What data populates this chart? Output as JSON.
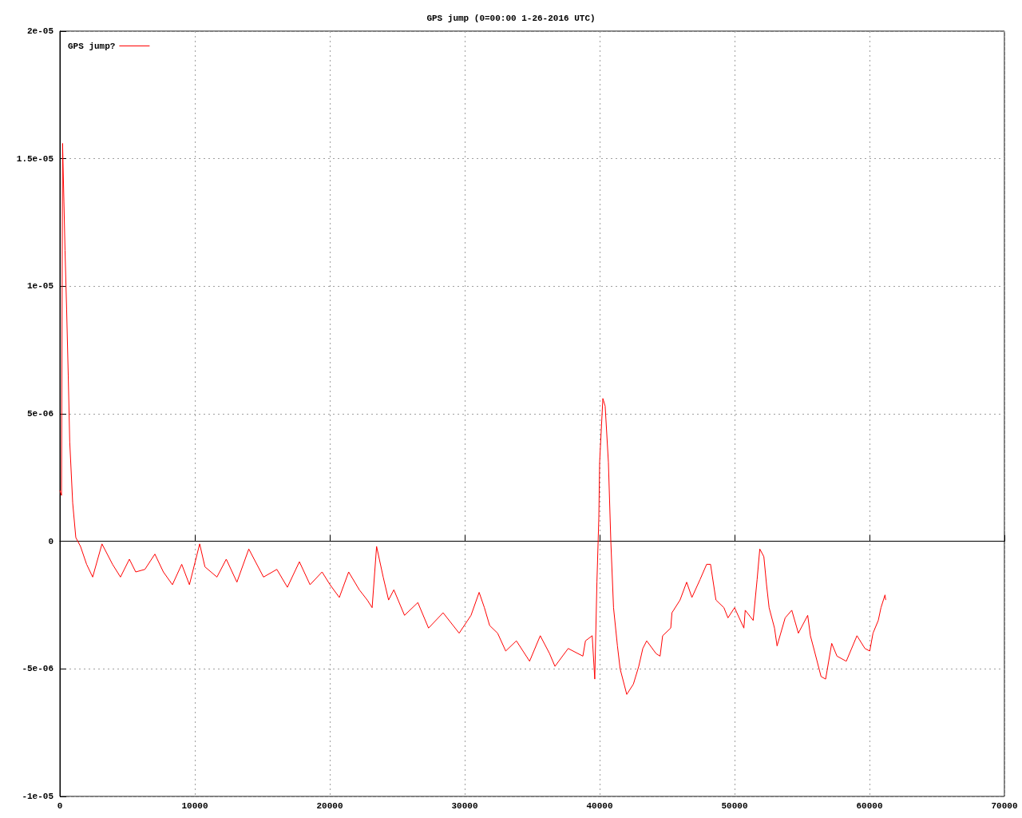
{
  "chart_data": {
    "type": "line",
    "title": "GPS jump (0=00:00 1-26-2016 UTC)",
    "xlim": [
      0,
      70000
    ],
    "xticks": [
      0,
      10000,
      20000,
      30000,
      40000,
      50000,
      60000,
      70000
    ],
    "ylim": [
      -1e-05,
      2e-05
    ],
    "yticks": [
      {
        "value": -1e-05,
        "label": "-1e-05"
      },
      {
        "value": -5e-06,
        "label": "-5e-06"
      },
      0,
      {
        "value": 5e-06,
        "label": "5e-06"
      },
      {
        "value": 1e-05,
        "label": "1e-05"
      },
      {
        "value": 1.5e-05,
        "label": "1.5e-05"
      },
      {
        "value": 2e-05,
        "label": "2e-05"
      }
    ],
    "grid": true,
    "legend": "top left",
    "marker": "none",
    "line_style": "solid",
    "series": [
      {
        "name": "GPS jump?",
        "color": "#ff0000",
        "x": [
          0,
          120,
          150,
          200,
          300,
          380,
          500,
          620,
          730,
          950,
          1180,
          1530,
          1980,
          2430,
          3120,
          3900,
          4490,
          5150,
          5620,
          6300,
          7040,
          7670,
          8340,
          9030,
          9600,
          10360,
          10750,
          11640,
          12330,
          13120,
          14000,
          15090,
          16080,
          16860,
          17750,
          18540,
          19430,
          20020,
          20710,
          21400,
          22190,
          22780,
          23140,
          23470,
          23960,
          24360,
          24750,
          25540,
          26530,
          27320,
          28400,
          29590,
          30470,
          31070,
          31460,
          31850,
          32440,
          33040,
          33830,
          34810,
          35600,
          36290,
          36690,
          37670,
          38760,
          38950,
          39450,
          39640,
          39800,
          39940,
          40000,
          40240,
          40410,
          40650,
          40830,
          41030,
          41320,
          41520,
          42010,
          42500,
          42900,
          43200,
          43490,
          44180,
          44480,
          44670,
          45270,
          45360,
          45960,
          46450,
          46840,
          47440,
          47930,
          48220,
          48620,
          49210,
          49510,
          50000,
          50690,
          50790,
          51380,
          51670,
          51870,
          52170,
          52370,
          52560,
          52960,
          53150,
          53750,
          54240,
          54730,
          55420,
          55620,
          55920,
          56410,
          56750,
          57200,
          57590,
          58280,
          59070,
          59660,
          60020,
          60260,
          60650,
          60850,
          61150,
          61200
        ],
        "values": [
          2e-06,
          1.8e-06,
          1.8e-06,
          1.56e-05,
          1.33e-05,
          1.14e-05,
          9.1e-06,
          6.5e-06,
          3.9e-06,
          1.5e-06,
          1.5e-07,
          -2e-07,
          -9e-07,
          -1.4e-06,
          -1e-07,
          -9e-07,
          -1.4e-06,
          -7e-07,
          -1.2e-06,
          -1.1e-06,
          -5e-07,
          -1.2e-06,
          -1.7e-06,
          -9e-07,
          -1.7e-06,
          -1e-07,
          -1e-06,
          -1.4e-06,
          -7e-07,
          -1.6e-06,
          -3e-07,
          -1.4e-06,
          -1.1e-06,
          -1.8e-06,
          -8e-07,
          -1.7e-06,
          -1.2e-06,
          -1.7e-06,
          -2.2e-06,
          -1.2e-06,
          -1.9e-06,
          -2.3e-06,
          -2.6e-06,
          -2e-07,
          -1.4e-06,
          -2.3e-06,
          -1.9e-06,
          -2.9e-06,
          -2.4e-06,
          -3.4e-06,
          -2.8e-06,
          -3.6e-06,
          -2.9e-06,
          -2e-06,
          -2.6e-06,
          -3.3e-06,
          -3.6e-06,
          -4.3e-06,
          -3.9e-06,
          -4.7e-06,
          -3.7e-06,
          -4.4e-06,
          -4.9e-06,
          -4.2e-06,
          -4.5e-06,
          -3.9e-06,
          -3.7e-06,
          -5.4e-06,
          -1.6e-06,
          9e-07,
          3.1e-06,
          5.6e-06,
          5.3e-06,
          3.1e-06,
          0.0,
          -2.6e-06,
          -4.1e-06,
          -5e-06,
          -6e-06,
          -5.6e-06,
          -4.9e-06,
          -4.2e-06,
          -3.9e-06,
          -4.4e-06,
          -4.5e-06,
          -3.7e-06,
          -3.4e-06,
          -2.8e-06,
          -2.3e-06,
          -1.6e-06,
          -2.2e-06,
          -1.5e-06,
          -9e-07,
          -9e-07,
          -2.3e-06,
          -2.6e-06,
          -3e-06,
          -2.6e-06,
          -3.4e-06,
          -2.7e-06,
          -3.1e-06,
          -1.5e-06,
          -3e-07,
          -6e-07,
          -1.7e-06,
          -2.6e-06,
          -3.4e-06,
          -4.1e-06,
          -3e-06,
          -2.7e-06,
          -3.6e-06,
          -2.9e-06,
          -3.7e-06,
          -4.3e-06,
          -5.3e-06,
          -5.4e-06,
          -4e-06,
          -4.5e-06,
          -4.7e-06,
          -3.7e-06,
          -4.2e-06,
          -4.3e-06,
          -3.6e-06,
          -3.1e-06,
          -2.6e-06,
          -2.1e-06,
          -2.3e-06
        ]
      }
    ]
  }
}
